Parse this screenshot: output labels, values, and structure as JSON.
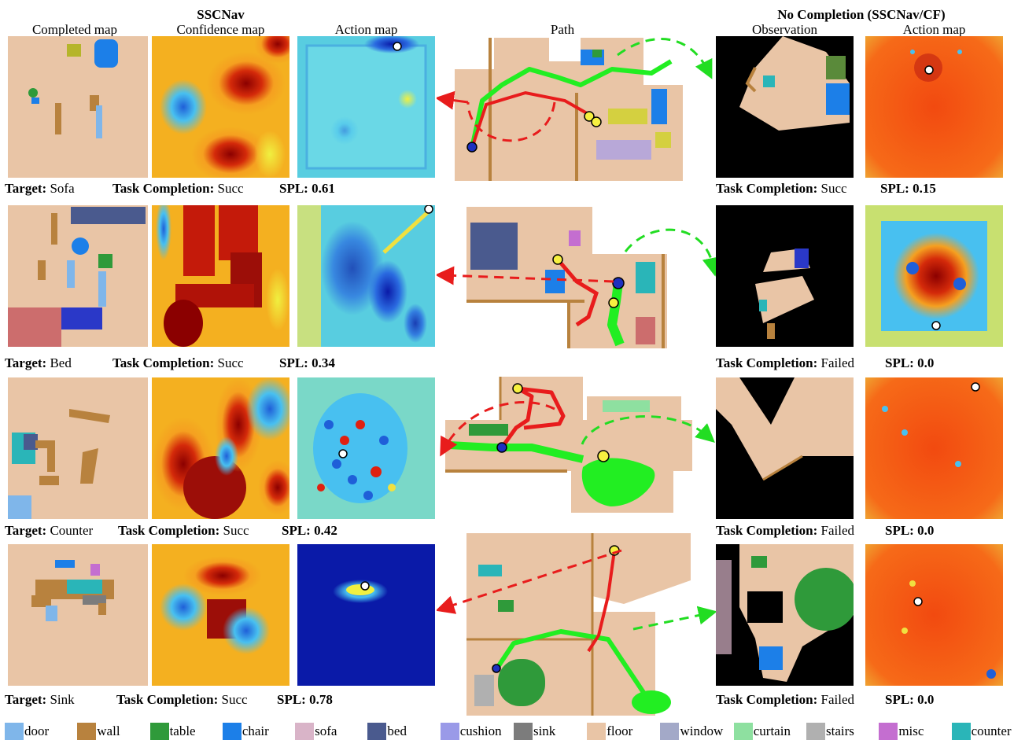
{
  "headers": {
    "completed_map": "Completed map",
    "sscnav": "SSCNav",
    "confidence_map": "Confidence map",
    "action_map": "Action map",
    "path": "Path",
    "no_completion": "No Completion (SSCNav/CF)",
    "observation": "Observation",
    "action_map_cf": "Action map"
  },
  "labels": {
    "target": "Target:",
    "task_completion": "Task Completion:",
    "spl": "SPL:"
  },
  "rows": [
    {
      "target": "Sofa",
      "completion": "Succ",
      "spl": "0.61",
      "cf_completion": "Succ",
      "cf_spl": "0.15"
    },
    {
      "target": "Bed",
      "completion": "Succ",
      "spl": "0.34",
      "cf_completion": "Failed",
      "cf_spl": "0.0"
    },
    {
      "target": "Counter",
      "completion": "Succ",
      "spl": "0.42",
      "cf_completion": "Failed",
      "cf_spl": "0.0"
    },
    {
      "target": "Sink",
      "completion": "Succ",
      "spl": "0.78",
      "cf_completion": "Failed",
      "cf_spl": "0.0"
    }
  ],
  "legend": [
    {
      "label": "door",
      "color": "#7fb6ea"
    },
    {
      "label": "wall",
      "color": "#b8823e"
    },
    {
      "label": "table",
      "color": "#2f9a3a"
    },
    {
      "label": "chair",
      "color": "#1c7fe8"
    },
    {
      "label": "sofa",
      "color": "#d9b4c8"
    },
    {
      "label": "bed",
      "color": "#4a5a8e"
    },
    {
      "label": "cushion",
      "color": "#9a9ae8"
    },
    {
      "label": "sink",
      "color": "#7c7c7c"
    },
    {
      "label": "floor",
      "color": "#e9c5a6"
    },
    {
      "label": "window",
      "color": "#a3a9c8"
    },
    {
      "label": "curtain",
      "color": "#8ee0a0"
    },
    {
      "label": "stairs",
      "color": "#b0b0b0"
    },
    {
      "label": "misc",
      "color": "#c46ed0"
    },
    {
      "label": "counter",
      "color": "#2ab5b8"
    }
  ]
}
